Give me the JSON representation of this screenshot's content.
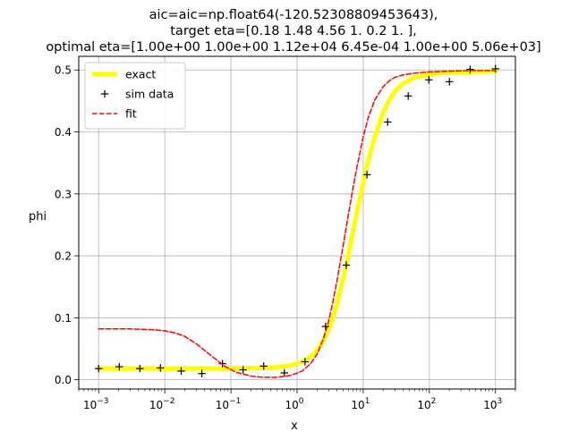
{
  "chart_data": {
    "type": "line",
    "title_lines": [
      "aic=aic=np.float64(-120.52308809453643),",
      "target eta=[0.18 1.48 4.56 1.   0.2  1.  ],",
      "optimal eta=[1.00e+00 1.00e+00 1.12e+04 6.45e-04 1.00e+00 5.06e+03]"
    ],
    "xlabel": "x",
    "ylabel": "phi",
    "xscale": "log",
    "xlim": [
      0.0005,
      2000
    ],
    "ylim": [
      -0.015,
      0.522
    ],
    "grid": true,
    "legend_position": "top-left",
    "x_ticks": [
      {
        "value": 0.001,
        "base": "10",
        "exp": "−3"
      },
      {
        "value": 0.01,
        "base": "10",
        "exp": "−2"
      },
      {
        "value": 0.1,
        "base": "10",
        "exp": "−1"
      },
      {
        "value": 1,
        "base": "10",
        "exp": "0"
      },
      {
        "value": 10,
        "base": "10",
        "exp": "1"
      },
      {
        "value": 100,
        "base": "10",
        "exp": "2"
      },
      {
        "value": 1000,
        "base": "10",
        "exp": "3"
      }
    ],
    "y_ticks": [
      {
        "value": 0.0,
        "label": "0.0"
      },
      {
        "value": 0.1,
        "label": "0.1"
      },
      {
        "value": 0.2,
        "label": "0.2"
      },
      {
        "value": 0.3,
        "label": "0.3"
      },
      {
        "value": 0.4,
        "label": "0.4"
      },
      {
        "value": 0.5,
        "label": "0.5"
      }
    ],
    "series": [
      {
        "name": "exact",
        "style": "line",
        "color": "#ffff00",
        "x": [
          0.001,
          0.01,
          0.1,
          0.3,
          0.5,
          0.8,
          1.2,
          1.6,
          2.0,
          2.5,
          3.0,
          3.5,
          4.0,
          5.0,
          6.0,
          7.0,
          8.0,
          10,
          12,
          15,
          20,
          25,
          30,
          40,
          60,
          80,
          120,
          200,
          400,
          1000
        ],
        "y": [
          0.018,
          0.018,
          0.018,
          0.019,
          0.02,
          0.023,
          0.029,
          0.037,
          0.047,
          0.063,
          0.081,
          0.101,
          0.122,
          0.164,
          0.203,
          0.238,
          0.269,
          0.318,
          0.355,
          0.392,
          0.431,
          0.452,
          0.465,
          0.478,
          0.488,
          0.491,
          0.494,
          0.496,
          0.497,
          0.498
        ]
      },
      {
        "name": "sim data",
        "style": "markers",
        "color": "#000000",
        "x": [
          0.001,
          0.00205,
          0.0042,
          0.0086,
          0.0177,
          0.0363,
          0.0745,
          0.153,
          0.313,
          0.643,
          1.32,
          2.7,
          5.54,
          11.4,
          23.4,
          47.9,
          98.2,
          201,
          413,
          1000
        ],
        "y": [
          0.018,
          0.021,
          0.018,
          0.019,
          0.014,
          0.01,
          0.026,
          0.016,
          0.022,
          0.011,
          0.029,
          0.086,
          0.185,
          0.331,
          0.416,
          0.458,
          0.484,
          0.481,
          0.501,
          0.502
        ]
      },
      {
        "name": "fit",
        "style": "dashed",
        "color": "#ff0000",
        "x": [
          0.001,
          0.003,
          0.006,
          0.01,
          0.015,
          0.02,
          0.03,
          0.05,
          0.08,
          0.12,
          0.2,
          0.3,
          0.5,
          0.8,
          1.2,
          1.6,
          2.0,
          2.5,
          3.0,
          3.5,
          4.0,
          5.0,
          6.0,
          7.0,
          8.0,
          10,
          12,
          15,
          20,
          25,
          30,
          40,
          60,
          100,
          200,
          400,
          1000
        ],
        "y": [
          0.082,
          0.082,
          0.081,
          0.079,
          0.075,
          0.07,
          0.058,
          0.039,
          0.022,
          0.012,
          0.006,
          0.004,
          0.004,
          0.007,
          0.014,
          0.026,
          0.041,
          0.066,
          0.095,
          0.127,
          0.159,
          0.218,
          0.268,
          0.309,
          0.342,
          0.392,
          0.424,
          0.452,
          0.473,
          0.483,
          0.488,
          0.492,
          0.495,
          0.497,
          0.498,
          0.499,
          0.499
        ]
      }
    ]
  }
}
